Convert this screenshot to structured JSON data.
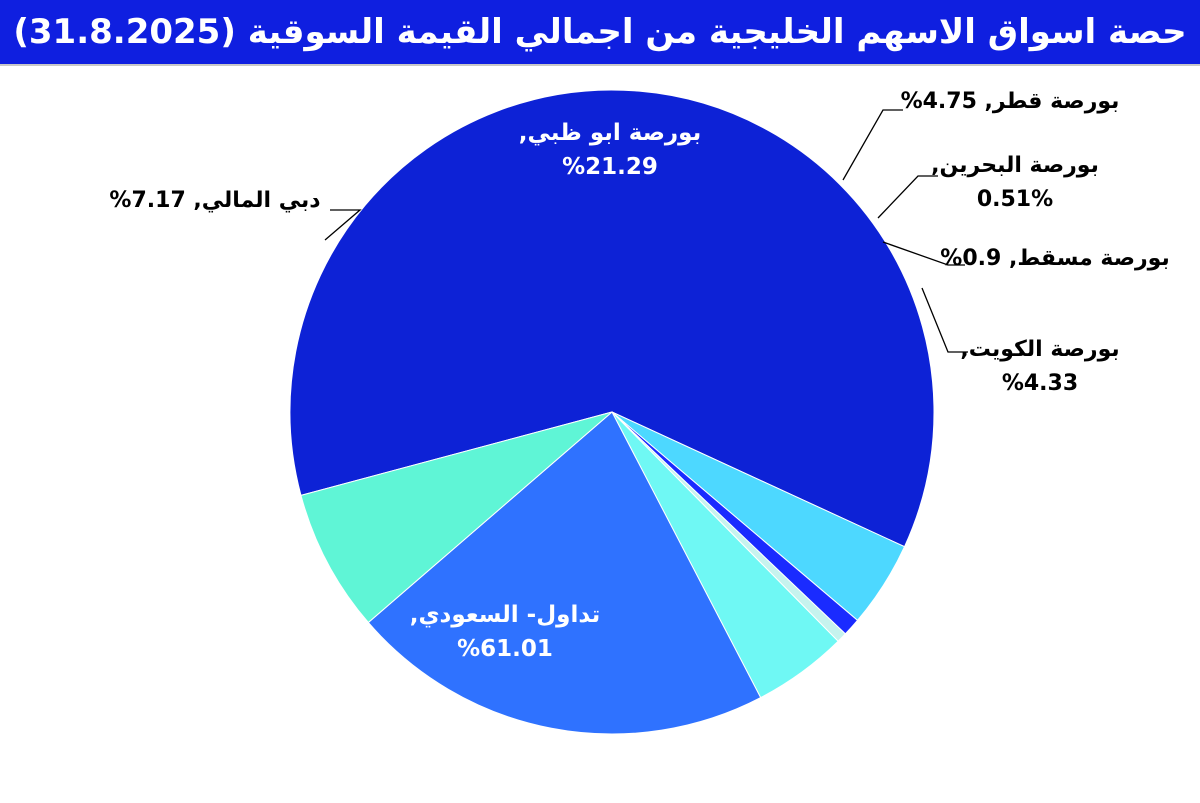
{
  "title": "حصة اسواق الاسهم الخليجية من اجمالي القيمة السوقية (31.8.2025)",
  "chart_data": {
    "type": "pie",
    "title": "حصة اسواق الاسهم الخليجية من اجمالي القيمة السوقية (31.8.2025)",
    "slices": [
      {
        "name": "تداول- السعودي",
        "value": 61.01,
        "color": "#0d22d6",
        "label": [
          "تداول- السعودي,",
          "%61.01"
        ],
        "label_color": "#ffffff"
      },
      {
        "name": "بورصة الكويت",
        "value": 4.33,
        "color": "#4dd8ff",
        "label": [
          "بورصة الكويت,",
          "%4.33"
        ],
        "label_color": "#000000"
      },
      {
        "name": "بورصة مسقط",
        "value": 0.9,
        "color": "#1a2bff",
        "label": [
          "بورصة مسقط, 0.9%"
        ],
        "label_color": "#000000"
      },
      {
        "name": "بورصة البحرين",
        "value": 0.51,
        "color": "#c6f3ee",
        "label": [
          "بورصة البحرين,",
          "0.51%"
        ],
        "label_color": "#000000"
      },
      {
        "name": "بورصة قطر",
        "value": 4.75,
        "color": "#6ff8f4",
        "label": [
          "بورصة قطر, 4.75%"
        ],
        "label_color": "#000000"
      },
      {
        "name": "بورصة ابو ظبي",
        "value": 21.29,
        "color": "#2f72ff",
        "label": [
          "بورصة ابو ظبي,",
          "%21.29"
        ],
        "label_color": "#ffffff"
      },
      {
        "name": "دبي المالي",
        "value": 7.17,
        "color": "#5ff5d6",
        "label": [
          "دبي المالي, 7.17%"
        ],
        "label_color": "#000000"
      }
    ]
  }
}
